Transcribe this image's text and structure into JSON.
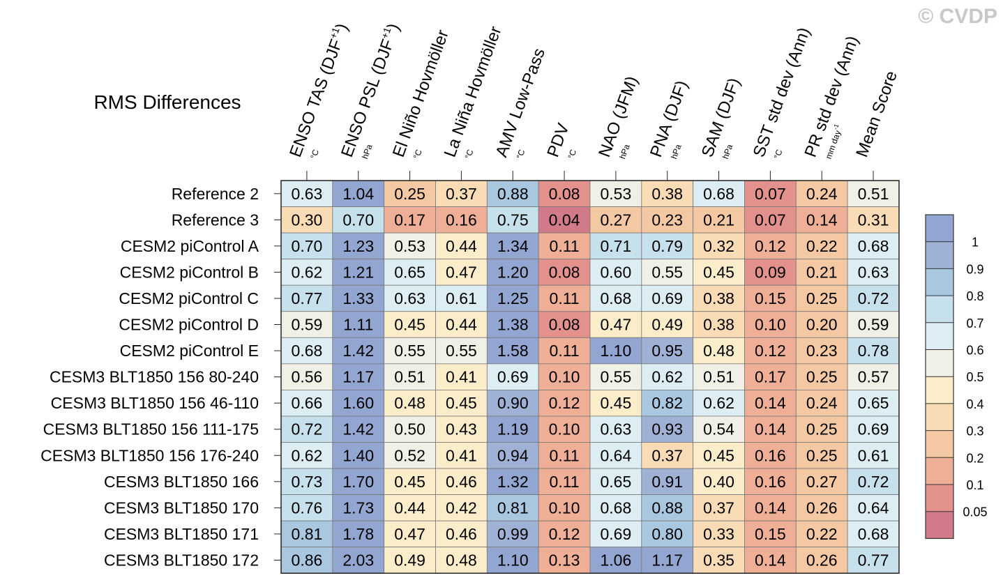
{
  "chart_data": {
    "type": "heatmap",
    "title": "RMS Differences",
    "watermark": "© CVDP",
    "columns": [
      {
        "label": "ENSO TAS (DJF",
        "sup": "+1",
        "close": ")",
        "unit": "°C"
      },
      {
        "label": "ENSO PSL (DJF",
        "sup": "+1",
        "close": ")",
        "unit": "hPa"
      },
      {
        "label": "El Niño Hovmöller",
        "sup": "",
        "close": "",
        "unit": "°C"
      },
      {
        "label": "La Niña Hovmöller",
        "sup": "",
        "close": "",
        "unit": "°C"
      },
      {
        "label": "AMV Low-Pass",
        "sup": "",
        "close": "",
        "unit": "°C"
      },
      {
        "label": "PDV",
        "sup": "",
        "close": "",
        "unit": "°C"
      },
      {
        "label": "NAO (JFM)",
        "sup": "",
        "close": "",
        "unit": "hPa"
      },
      {
        "label": "PNA (DJF)",
        "sup": "",
        "close": "",
        "unit": "hPa"
      },
      {
        "label": "SAM (DJF)",
        "sup": "",
        "close": "",
        "unit": "hPa"
      },
      {
        "label": "SST std dev (Ann)",
        "sup": "",
        "close": "",
        "unit": "°C"
      },
      {
        "label": "PR std dev (Ann)",
        "sup": "",
        "close": "",
        "unit": "mm day",
        "unit_sup": "-1"
      },
      {
        "label": "Mean Score",
        "sup": "",
        "close": "",
        "unit": ""
      }
    ],
    "rows": [
      {
        "name": "Reference 2",
        "values": [
          "0.63",
          "1.04",
          "0.25",
          "0.37",
          "0.88",
          "0.08",
          "0.53",
          "0.38",
          "0.68",
          "0.07",
          "0.24",
          "0.51"
        ]
      },
      {
        "name": "Reference 3",
        "values": [
          "0.30",
          "0.70",
          "0.17",
          "0.16",
          "0.75",
          "0.04",
          "0.27",
          "0.23",
          "0.21",
          "0.07",
          "0.14",
          "0.31"
        ]
      },
      {
        "name": "CESM2 piControl A",
        "values": [
          "0.70",
          "1.23",
          "0.53",
          "0.44",
          "1.34",
          "0.11",
          "0.71",
          "0.79",
          "0.32",
          "0.12",
          "0.22",
          "0.68"
        ]
      },
      {
        "name": "CESM2 piControl B",
        "values": [
          "0.62",
          "1.21",
          "0.65",
          "0.47",
          "1.20",
          "0.08",
          "0.60",
          "0.55",
          "0.45",
          "0.09",
          "0.21",
          "0.63"
        ]
      },
      {
        "name": "CESM2 piControl C",
        "values": [
          "0.77",
          "1.33",
          "0.63",
          "0.61",
          "1.25",
          "0.11",
          "0.68",
          "0.69",
          "0.38",
          "0.15",
          "0.25",
          "0.72"
        ]
      },
      {
        "name": "CESM2 piControl D",
        "values": [
          "0.59",
          "1.11",
          "0.45",
          "0.44",
          "1.38",
          "0.08",
          "0.47",
          "0.49",
          "0.38",
          "0.10",
          "0.20",
          "0.59"
        ]
      },
      {
        "name": "CESM2 piControl E",
        "values": [
          "0.68",
          "1.42",
          "0.55",
          "0.55",
          "1.58",
          "0.11",
          "1.10",
          "0.95",
          "0.48",
          "0.12",
          "0.23",
          "0.78"
        ]
      },
      {
        "name": "CESM3 BLT1850 156 80-240",
        "values": [
          "0.56",
          "1.17",
          "0.51",
          "0.41",
          "0.69",
          "0.10",
          "0.55",
          "0.62",
          "0.51",
          "0.17",
          "0.25",
          "0.57"
        ]
      },
      {
        "name": "CESM3 BLT1850 156 46-110",
        "values": [
          "0.66",
          "1.60",
          "0.48",
          "0.45",
          "0.90",
          "0.12",
          "0.45",
          "0.82",
          "0.62",
          "0.14",
          "0.24",
          "0.65"
        ]
      },
      {
        "name": "CESM3 BLT1850 156 111-175",
        "values": [
          "0.72",
          "1.42",
          "0.50",
          "0.43",
          "1.19",
          "0.10",
          "0.63",
          "0.93",
          "0.54",
          "0.14",
          "0.25",
          "0.69"
        ]
      },
      {
        "name": "CESM3 BLT1850 156 176-240",
        "values": [
          "0.62",
          "1.40",
          "0.52",
          "0.41",
          "0.94",
          "0.11",
          "0.64",
          "0.37",
          "0.45",
          "0.16",
          "0.25",
          "0.61"
        ]
      },
      {
        "name": "CESM3 BLT1850 166",
        "values": [
          "0.73",
          "1.70",
          "0.45",
          "0.46",
          "1.32",
          "0.11",
          "0.65",
          "0.91",
          "0.40",
          "0.16",
          "0.27",
          "0.72"
        ]
      },
      {
        "name": "CESM3 BLT1850 170",
        "values": [
          "0.76",
          "1.73",
          "0.44",
          "0.42",
          "0.81",
          "0.10",
          "0.68",
          "0.88",
          "0.37",
          "0.14",
          "0.26",
          "0.64"
        ]
      },
      {
        "name": "CESM3 BLT1850 171",
        "values": [
          "0.81",
          "1.78",
          "0.47",
          "0.46",
          "0.99",
          "0.12",
          "0.69",
          "0.80",
          "0.33",
          "0.15",
          "0.22",
          "0.68"
        ]
      },
      {
        "name": "CESM3 BLT1850 172",
        "values": [
          "0.86",
          "2.03",
          "0.49",
          "0.48",
          "1.10",
          "0.13",
          "1.06",
          "1.17",
          "0.35",
          "0.14",
          "0.26",
          "0.77"
        ]
      }
    ],
    "colorbar": {
      "labels": [
        "1",
        "0.9",
        "0.8",
        "0.7",
        "0.6",
        "0.5",
        "0.4",
        "0.3",
        "0.2",
        "0.1",
        "0.05"
      ],
      "thresholds": [
        0.05,
        0.1,
        0.2,
        0.3,
        0.4,
        0.5,
        0.6,
        0.7,
        0.8,
        0.9,
        1
      ],
      "colors": [
        "#d17b8a",
        "#e3918c",
        "#efaf96",
        "#f5c8a4",
        "#f9dcb6",
        "#fbecca",
        "#f1f0e6",
        "#dceef3",
        "#c6e0ec",
        "#a9c8e0",
        "#9fb2d6",
        "#93a6d2"
      ]
    },
    "cell_border_color": "#777777"
  }
}
